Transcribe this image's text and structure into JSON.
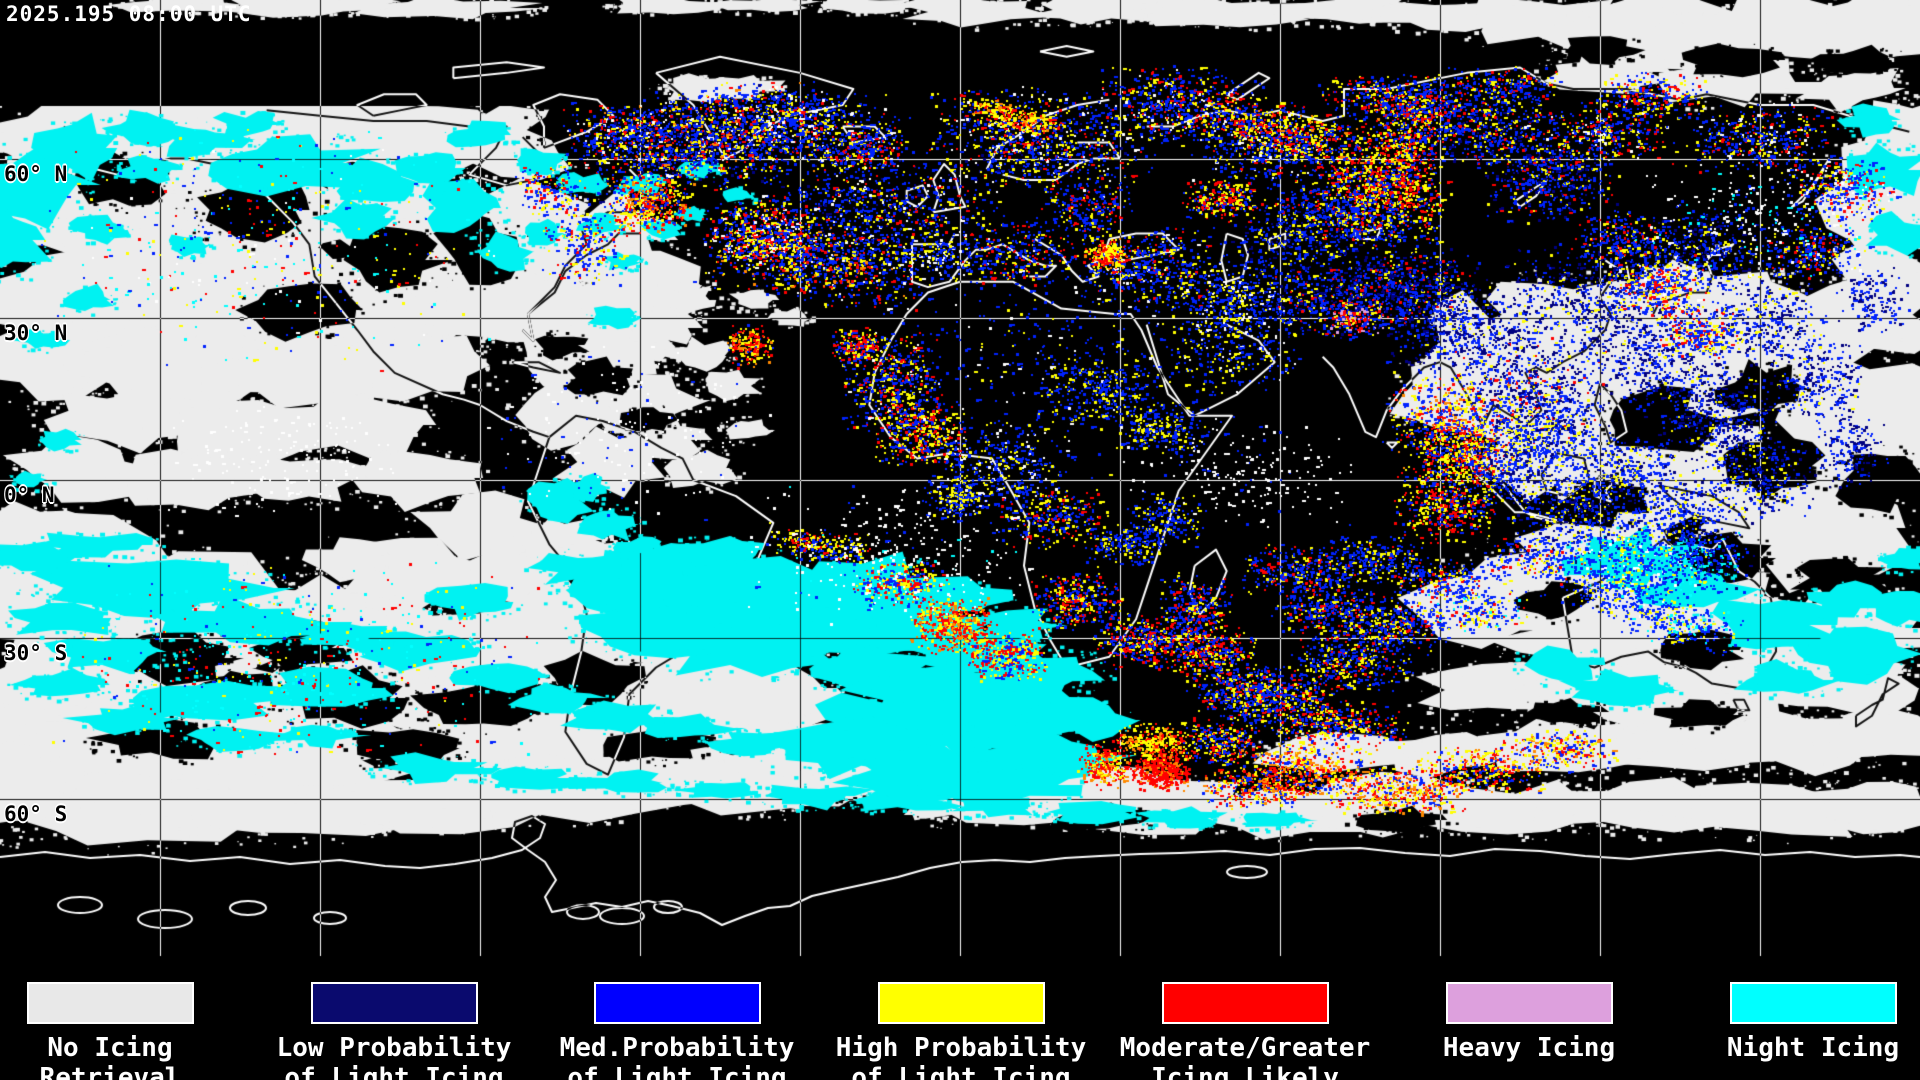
{
  "header": {
    "timestamp": "2025.195 08:00 UTC"
  },
  "map": {
    "latitude_labels": [
      {
        "text": "60° N"
      },
      {
        "text": "30° N"
      },
      {
        "text": "0° N"
      },
      {
        "text": "30° S"
      },
      {
        "text": "60° S"
      }
    ]
  },
  "legend": {
    "items": [
      {
        "line1": "No Icing",
        "line2": "Retrieval",
        "color": "#e8e8e8"
      },
      {
        "line1": "Low Probability",
        "line2": "of Light Icing",
        "color": "#0a0a6e"
      },
      {
        "line1": "Med.Probability",
        "line2": "of Light Icing",
        "color": "#0000ff"
      },
      {
        "line1": "High Probability",
        "line2": "of Light Icing",
        "color": "#ffff00"
      },
      {
        "line1": "Moderate/Greater",
        "line2": "Icing Likely",
        "color": "#ff0000"
      },
      {
        "line1": "Heavy Icing",
        "line2": "",
        "color": "#dda0dd"
      },
      {
        "line1": "Night Icing",
        "line2": "",
        "color": "#00ffff"
      }
    ]
  },
  "colors": {
    "background": "#000000",
    "cloud_no_retrieval": "#ececec",
    "low_prob": "#0a0a6e",
    "med_prob": "#0000ff",
    "high_prob": "#ffff00",
    "moderate_greater": "#ff0000",
    "heavy": "#dda0dd",
    "night": "#00ffff",
    "gridline": "#ffffff",
    "coastline": "#ffffff"
  }
}
